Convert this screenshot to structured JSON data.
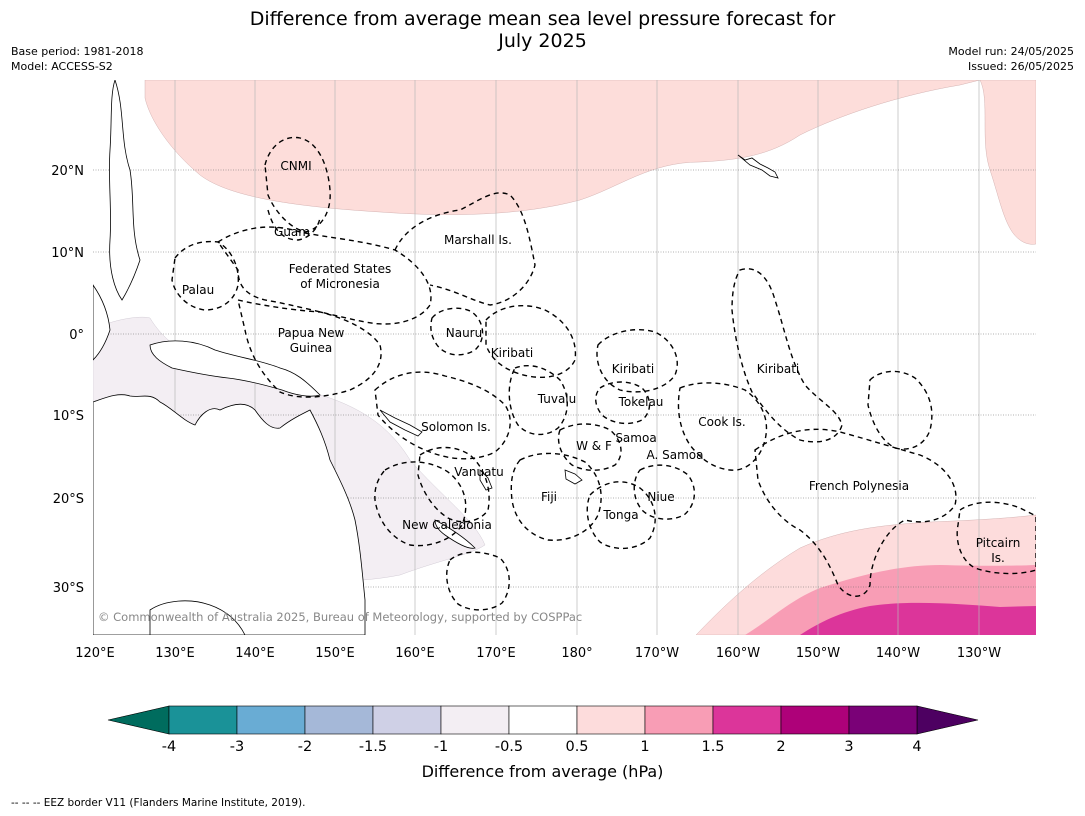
{
  "title_line1": "Difference from average mean sea level pressure forecast for",
  "title_line2": "July 2025",
  "base_period": "Base period: 1981-2018",
  "model": "Model: ACCESS-S2",
  "model_run": "Model run: 24/05/2025",
  "issued": "Issued: 26/05/2025",
  "copyright": "© Commonwealth of Australia 2025, Bureau of Meteorology, supported by COSPPac",
  "colorbar_label": "Difference from average (hPa)",
  "footer": "--  --  -- EEZ border V11 (Flanders Marine Institute, 2019).",
  "lon_ticks": [
    "120°E",
    "130°E",
    "140°E",
    "150°E",
    "160°E",
    "170°E",
    "180°",
    "170°W",
    "160°W",
    "150°W",
    "140°W",
    "130°W"
  ],
  "lat_ticks": [
    "20°N",
    "10°N",
    "0°",
    "10°S",
    "20°S",
    "30°S"
  ],
  "places": [
    "CNMI",
    "Guam",
    "Marshall Is.",
    "Federated States",
    "of Micronesia",
    "Palau",
    "Papua New",
    "Guinea",
    "Nauru",
    "Kiribati",
    "Kiribati",
    "Kiribati",
    "Tuvalu",
    "Tokelau",
    "Cook Is.",
    "Solomon Is.",
    "Samoa",
    "W & F",
    "A. Samoa",
    "Vanuatu",
    "Fiji",
    "Niue",
    "French Polynesia",
    "Tonga",
    "New Caledonia",
    "Pitcairn",
    "Is."
  ],
  "colorbar_ticks": [
    "-4",
    "-3",
    "-2",
    "-1.5",
    "-1",
    "-0.5",
    "0.5",
    "1",
    "1.5",
    "2",
    "3",
    "4"
  ],
  "colorbar_colors": [
    "#006c5e",
    "#1a9298",
    "#69acd4",
    "#a5b8d8",
    "#cfd0e6",
    "#f3eef3",
    "#ffffff",
    "#fddcdc",
    "#f89db5",
    "#dc359a",
    "#ae0179",
    "#7a0177",
    "#4d0061"
  ]
}
